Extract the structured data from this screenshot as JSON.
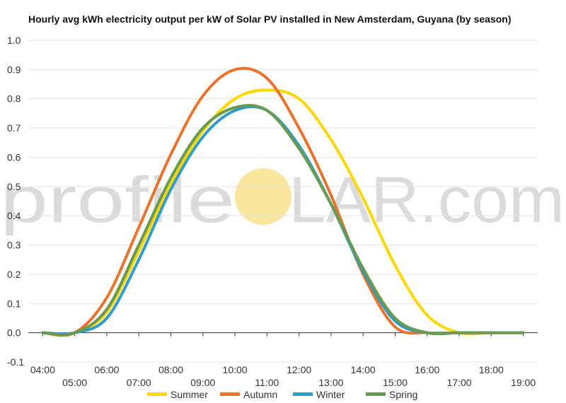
{
  "watermark": {
    "left": "profile",
    "right": "LAR.com",
    "sun_color": "#F9E79F"
  },
  "chart_data": {
    "type": "line",
    "title": "Hourly avg kWh electricity output per kW of Solar PV installed in New Amsterdam, Guyana (by season)",
    "xlabel": "",
    "ylabel": "",
    "x": [
      4,
      5,
      6,
      7,
      8,
      9,
      10,
      11,
      12,
      13,
      14,
      15,
      16,
      17,
      18,
      19
    ],
    "x_tick_labels": [
      "04:00",
      "05:00",
      "06:00",
      "07:00",
      "08:00",
      "09:00",
      "10:00",
      "11:00",
      "12:00",
      "13:00",
      "14:00",
      "15:00",
      "16:00",
      "17:00",
      "18:00",
      "19:00"
    ],
    "xlim": [
      3.55,
      19.45
    ],
    "ylim": [
      -0.1,
      1.0
    ],
    "y_ticks": [
      -0.1,
      0.0,
      0.1,
      0.2,
      0.3,
      0.4,
      0.5,
      0.6,
      0.7,
      0.8,
      0.9,
      1.0
    ],
    "y_tick_labels": [
      "-0.1",
      "0.0",
      "0.1",
      "0.2",
      "0.3",
      "0.4",
      "0.5",
      "0.6",
      "0.7",
      "0.8",
      "0.9",
      "1.0"
    ],
    "grid": true,
    "legend_position": "bottom",
    "series": [
      {
        "name": "Summer",
        "color": "#FFD700",
        "values": [
          0.0,
          0.0,
          0.07,
          0.28,
          0.51,
          0.69,
          0.8,
          0.83,
          0.8,
          0.66,
          0.46,
          0.23,
          0.06,
          0.0,
          0.0,
          0.0
        ]
      },
      {
        "name": "Autumn",
        "color": "#E8732A",
        "values": [
          0.0,
          0.0,
          0.12,
          0.36,
          0.61,
          0.81,
          0.9,
          0.87,
          0.7,
          0.47,
          0.2,
          0.02,
          0.0,
          0.0,
          0.0,
          0.0
        ]
      },
      {
        "name": "Winter",
        "color": "#2E9BC9",
        "values": [
          0.0,
          0.0,
          0.05,
          0.25,
          0.49,
          0.67,
          0.76,
          0.76,
          0.64,
          0.44,
          0.21,
          0.04,
          0.0,
          0.0,
          0.0,
          0.0
        ]
      },
      {
        "name": "Spring",
        "color": "#6A9A52",
        "values": [
          0.0,
          0.0,
          0.08,
          0.3,
          0.53,
          0.7,
          0.77,
          0.76,
          0.63,
          0.44,
          0.22,
          0.05,
          0.0,
          0.0,
          0.0,
          0.0
        ]
      }
    ]
  }
}
